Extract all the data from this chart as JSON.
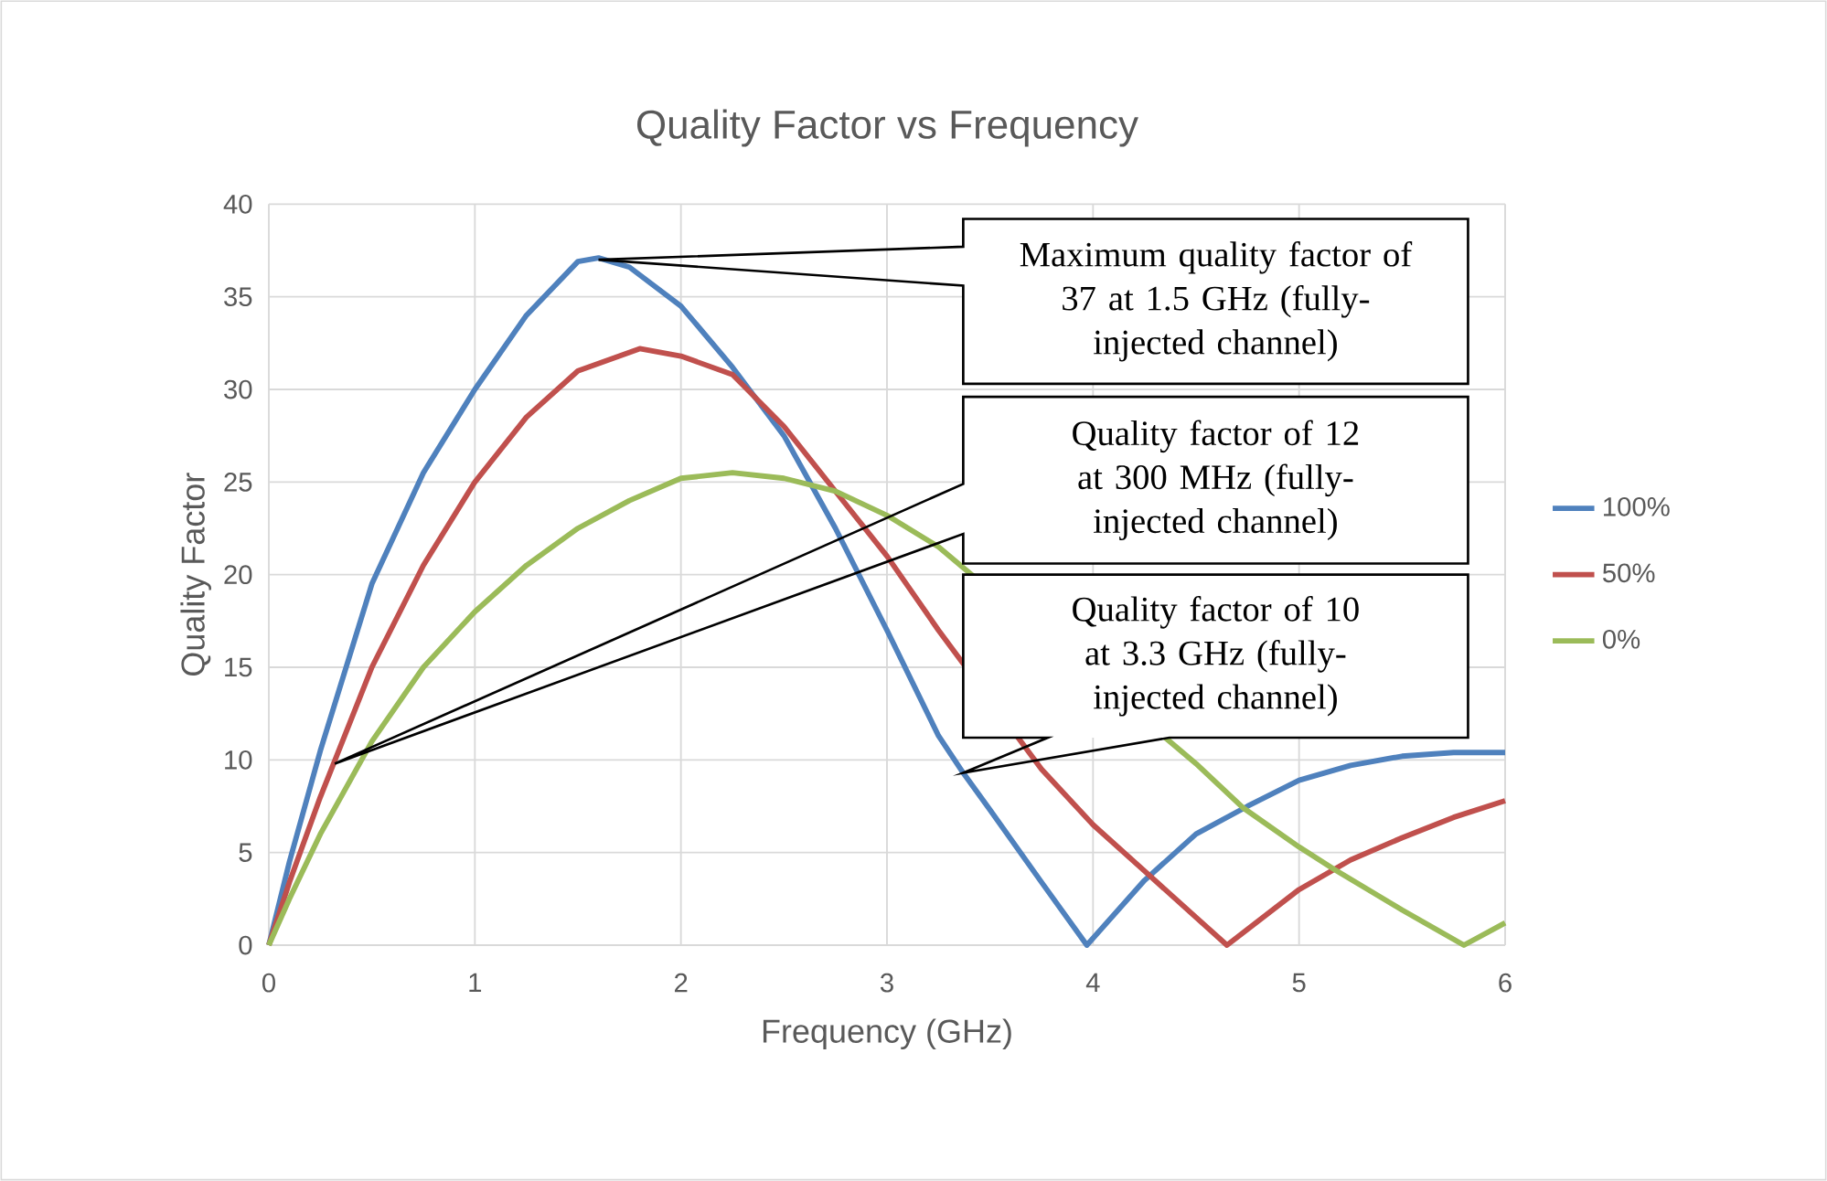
{
  "chart_data": {
    "type": "line",
    "title": "Quality Factor vs Frequency",
    "xlabel": "Frequency (GHz)",
    "ylabel": "Quality Factor",
    "xlim": [
      0,
      6
    ],
    "ylim": [
      0,
      40
    ],
    "xticks": [
      0,
      1,
      2,
      3,
      4,
      5,
      6
    ],
    "yticks": [
      0,
      5,
      10,
      15,
      20,
      25,
      30,
      35,
      40
    ],
    "grid": true,
    "legend": "right",
    "line_style": "solid",
    "marker": "none",
    "series": [
      {
        "name": "100%",
        "color": "#4f81bd",
        "x": [
          0,
          0.1,
          0.25,
          0.5,
          0.75,
          1,
          1.25,
          1.5,
          1.6,
          1.75,
          2,
          2.25,
          2.5,
          2.75,
          3,
          3.25,
          3.37,
          3.5,
          3.75,
          3.97,
          4.25,
          4.5,
          4.75,
          5,
          5.25,
          5.5,
          5.75,
          6
        ],
        "values": [
          0,
          4.5,
          10.5,
          19.5,
          25.5,
          30,
          34,
          36.9,
          37.1,
          36.6,
          34.5,
          31.2,
          27.5,
          22.5,
          17,
          11.3,
          9.3,
          7.3,
          3.4,
          0,
          3.5,
          6,
          7.5,
          8.9,
          9.7,
          10.2,
          10.4,
          10.4
        ]
      },
      {
        "name": "50%",
        "color": "#c0504d",
        "x": [
          0,
          0.1,
          0.25,
          0.5,
          0.75,
          1,
          1.25,
          1.5,
          1.8,
          2,
          2.25,
          2.5,
          2.75,
          3,
          3.25,
          3.5,
          3.75,
          4,
          4.25,
          4.5,
          4.65,
          5,
          5.25,
          5.5,
          5.75,
          6
        ],
        "values": [
          0,
          3.4,
          8,
          15,
          20.5,
          25,
          28.5,
          31,
          32.2,
          31.8,
          30.8,
          28,
          24.5,
          21,
          17,
          null,
          9.5,
          6.5,
          4,
          1.5,
          0,
          3,
          4.6,
          5.8,
          6.9,
          7.8
        ]
      },
      {
        "name": "0%",
        "color": "#9bbb59",
        "x": [
          0,
          0.1,
          0.25,
          0.5,
          0.75,
          1,
          1.25,
          1.5,
          1.75,
          2,
          2.25,
          2.5,
          2.75,
          3,
          3.25,
          3.5,
          3.75,
          4,
          4.25,
          4.5,
          4.73,
          5,
          5.17,
          5.5,
          5.8,
          6
        ],
        "values": [
          0,
          2.5,
          6,
          11,
          15,
          18,
          20.5,
          22.5,
          24,
          25.2,
          25.5,
          25.2,
          24.5,
          23.2,
          21.5,
          null,
          null,
          null,
          null,
          9.8,
          7.4,
          5.3,
          4.1,
          1.9,
          0,
          1.2
        ]
      }
    ],
    "annotations": [
      "Maximum quality factor of 37 at 1.5 GHz (fully-injected channel)",
      "Quality factor of 12 at 300 MHz (fully-injected channel)",
      "Quality factor of 10 at 3.3 GHz (fully-injected channel)"
    ]
  }
}
